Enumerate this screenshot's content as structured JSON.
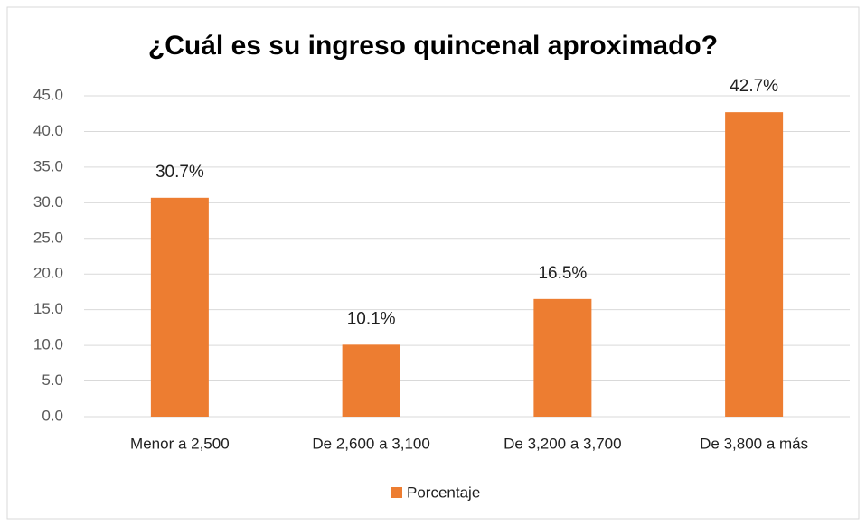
{
  "chart_data": {
    "type": "bar",
    "title": "¿Cuál es su ingreso quincenal aproximado?",
    "categories": [
      "Menor a 2,500",
      "De 2,600 a 3,100",
      "De 3,200 a 3,700",
      "De 3,800 a más"
    ],
    "series": [
      {
        "name": "Porcentaje",
        "color": "#ed7d31",
        "values": [
          30.7,
          10.1,
          16.5,
          42.7
        ],
        "value_labels": [
          "30.7%",
          "10.1%",
          "16.5%",
          "42.7%"
        ]
      }
    ],
    "ylim": [
      0,
      45
    ],
    "yticks": [
      {
        "value": 0,
        "label": "0.0"
      },
      {
        "value": 5,
        "label": "5.0"
      },
      {
        "value": 10,
        "label": "10.0"
      },
      {
        "value": 15,
        "label": "15.0"
      },
      {
        "value": 20,
        "label": "20.0"
      },
      {
        "value": 25,
        "label": "25.0"
      },
      {
        "value": 30,
        "label": "30.0"
      },
      {
        "value": 35,
        "label": "35.0"
      },
      {
        "value": 40,
        "label": "40.0"
      },
      {
        "value": 45,
        "label": "45.0"
      }
    ],
    "grid": true,
    "legend": "bottom"
  }
}
